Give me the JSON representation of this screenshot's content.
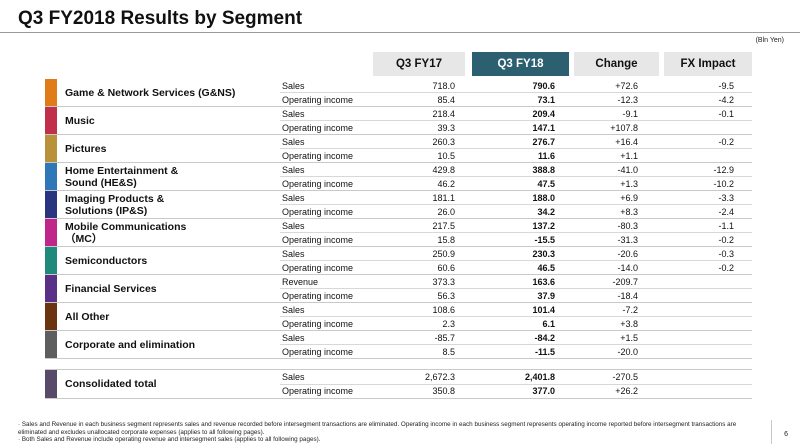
{
  "title": "Q3 FY2018 Results by Segment",
  "unit": "(Bln Yen)",
  "headers": {
    "fy17": "Q3 FY17",
    "fy18": "Q3 FY18",
    "change": "Change",
    "fx": "FX Impact"
  },
  "segments": [
    {
      "name": "Game & Network Services (G&NS)",
      "color": "#e07b1a",
      "rows": [
        {
          "metric": "Sales",
          "fy17": "718.0",
          "fy18": "790.6",
          "change": "+72.6",
          "fx": "-9.5"
        },
        {
          "metric": "Operating income",
          "fy17": "85.4",
          "fy18": "73.1",
          "change": "-12.3",
          "fx": "-4.2"
        }
      ]
    },
    {
      "name": "Music",
      "color": "#c0304a",
      "rows": [
        {
          "metric": "Sales",
          "fy17": "218.4",
          "fy18": "209.4",
          "change": "-9.1",
          "fx": "-0.1"
        },
        {
          "metric": "Operating income",
          "fy17": "39.3",
          "fy18": "147.1",
          "change": "+107.8",
          "fx": ""
        }
      ]
    },
    {
      "name": "Pictures",
      "color": "#b8913a",
      "rows": [
        {
          "metric": "Sales",
          "fy17": "260.3",
          "fy18": "276.7",
          "change": "+16.4",
          "fx": "-0.2"
        },
        {
          "metric": "Operating income",
          "fy17": "10.5",
          "fy18": "11.6",
          "change": "+1.1",
          "fx": ""
        }
      ]
    },
    {
      "name": "Home Entertainment &\nSound (HE&S)",
      "color": "#2f78b8",
      "rows": [
        {
          "metric": "Sales",
          "fy17": "429.8",
          "fy18": "388.8",
          "change": "-41.0",
          "fx": "-12.9"
        },
        {
          "metric": "Operating income",
          "fy17": "46.2",
          "fy18": "47.5",
          "change": "+1.3",
          "fx": "-10.2"
        }
      ]
    },
    {
      "name": "Imaging Products &\nSolutions (IP&S)",
      "color": "#2a3580",
      "rows": [
        {
          "metric": "Sales",
          "fy17": "181.1",
          "fy18": "188.0",
          "change": "+6.9",
          "fx": "-3.3"
        },
        {
          "metric": "Operating income",
          "fy17": "26.0",
          "fy18": "34.2",
          "change": "+8.3",
          "fx": "-2.4"
        }
      ]
    },
    {
      "name": "Mobile Communications\n（MC）",
      "color": "#c0268a",
      "rows": [
        {
          "metric": "Sales",
          "fy17": "217.5",
          "fy18": "137.2",
          "change": "-80.3",
          "fx": "-1.1"
        },
        {
          "metric": "Operating income",
          "fy17": "15.8",
          "fy18": "-15.5",
          "change": "-31.3",
          "fx": "-0.2"
        }
      ]
    },
    {
      "name": "Semiconductors",
      "color": "#1f8a7a",
      "rows": [
        {
          "metric": "Sales",
          "fy17": "250.9",
          "fy18": "230.3",
          "change": "-20.6",
          "fx": "-0.3"
        },
        {
          "metric": "Operating income",
          "fy17": "60.6",
          "fy18": "46.5",
          "change": "-14.0",
          "fx": "-0.2"
        }
      ]
    },
    {
      "name": "Financial Services",
      "color": "#5a2f88",
      "rows": [
        {
          "metric": "Revenue",
          "fy17": "373.3",
          "fy18": "163.6",
          "change": "-209.7",
          "fx": ""
        },
        {
          "metric": "Operating income",
          "fy17": "56.3",
          "fy18": "37.9",
          "change": "-18.4",
          "fx": ""
        }
      ]
    },
    {
      "name": "All Other",
      "color": "#6b3410",
      "rows": [
        {
          "metric": "Sales",
          "fy17": "108.6",
          "fy18": "101.4",
          "change": "-7.2",
          "fx": ""
        },
        {
          "metric": "Operating income",
          "fy17": "2.3",
          "fy18": "6.1",
          "change": "+3.8",
          "fx": ""
        }
      ]
    },
    {
      "name": "Corporate and elimination",
      "color": "#5e5e5e",
      "rows": [
        {
          "metric": "Sales",
          "fy17": "-85.7",
          "fy18": "-84.2",
          "change": "+1.5",
          "fx": ""
        },
        {
          "metric": "Operating income",
          "fy17": "8.5",
          "fy18": "-11.5",
          "change": "-20.0",
          "fx": ""
        }
      ]
    }
  ],
  "total": {
    "name": "Consolidated total",
    "color": "#5a4a6a",
    "rows": [
      {
        "metric": "Sales",
        "fy17": "2,672.3",
        "fy18": "2,401.8",
        "change": "-270.5",
        "fx": ""
      },
      {
        "metric": "Operating income",
        "fy17": "350.8",
        "fy18": "377.0",
        "change": "+26.2",
        "fx": ""
      }
    ]
  },
  "footnotes": [
    "· Sales and Revenue in each business segment represents sales and revenue recorded before intersegment transactions are eliminated. Operating income in each business segment represents operating income reported before intersegment transactions are eliminated and excludes unallocated corporate expenses (applies to all following pages).",
    "· Both Sales and Revenue include operating revenue and intersegment sales (applies to all following pages)."
  ],
  "page_number": "6"
}
